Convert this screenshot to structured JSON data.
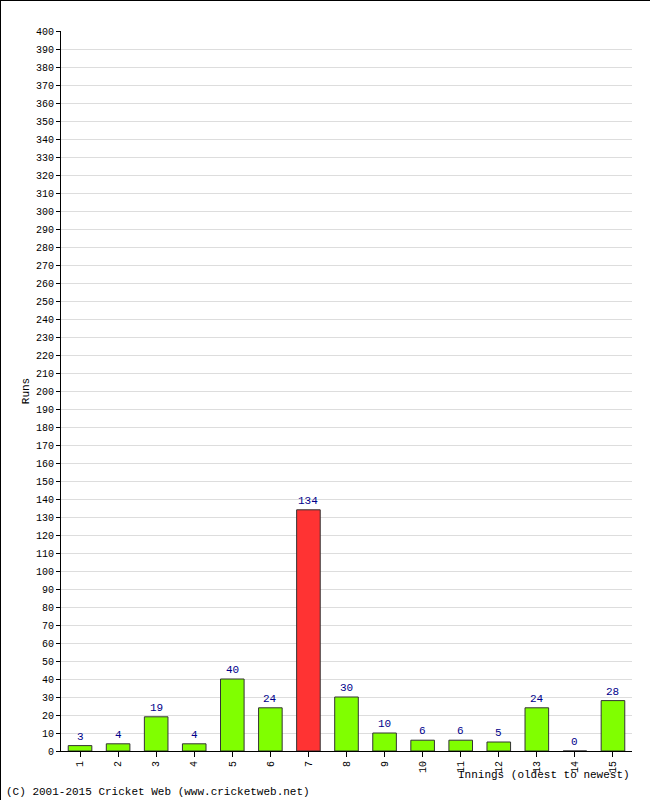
{
  "chart_data": {
    "type": "bar",
    "y_label": "Runs",
    "x_label": "Innings (oldest to newest)",
    "annotations": [
      "(C) 2001-2015 Cricket Web (www.cricketweb.net)"
    ],
    "categories": [
      "1",
      "2",
      "3",
      "4",
      "5",
      "6",
      "7",
      "8",
      "9",
      "10",
      "11",
      "12",
      "13",
      "14",
      "15"
    ],
    "values": [
      3,
      4,
      19,
      4,
      40,
      24,
      134,
      30,
      10,
      6,
      6,
      5,
      24,
      0,
      28
    ],
    "colors": [
      "#80ff00",
      "#80ff00",
      "#80ff00",
      "#80ff00",
      "#80ff00",
      "#80ff00",
      "#ff3333",
      "#80ff00",
      "#80ff00",
      "#80ff00",
      "#80ff00",
      "#80ff00",
      "#80ff00",
      "#80ff00",
      "#80ff00"
    ],
    "ylim": [
      0,
      400
    ],
    "yticks": [
      0,
      10,
      20,
      30,
      40,
      50,
      60,
      70,
      80,
      90,
      100,
      110,
      120,
      130,
      140,
      150,
      160,
      170,
      180,
      190,
      200,
      210,
      220,
      230,
      240,
      250,
      260,
      270,
      280,
      290,
      300,
      310,
      320,
      330,
      340,
      350,
      360,
      370,
      380,
      390,
      400
    ],
    "grid": true,
    "data_labels": true
  }
}
